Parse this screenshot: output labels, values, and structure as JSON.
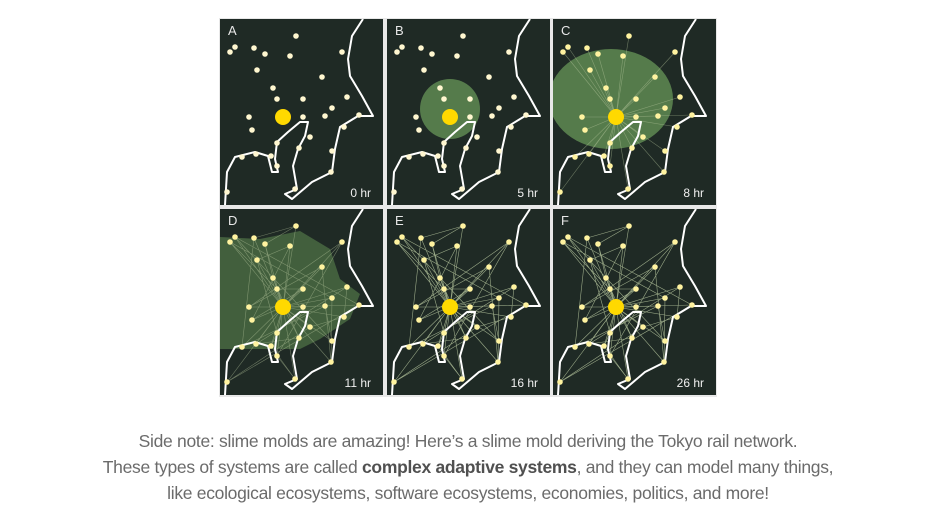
{
  "figure": {
    "panels": [
      {
        "letter": "A",
        "time": "0 hr"
      },
      {
        "letter": "B",
        "time": "5 hr"
      },
      {
        "letter": "C",
        "time": "8 hr"
      },
      {
        "letter": "D",
        "time": "11 hr"
      },
      {
        "letter": "E",
        "time": "16 hr"
      },
      {
        "letter": "F",
        "time": "26 hr"
      }
    ],
    "colors": {
      "background": "#1f2a25",
      "coast": "#ffffff",
      "food": "#fff7d0",
      "mold": "#ffd900",
      "plasmodium": "#5f8a52"
    }
  },
  "caption": {
    "line1": "Side note: slime molds are amazing! Here’s a slime mold deriving the Tokyo rail network.",
    "line2_pre": "These types of systems are called ",
    "line2_bold": "complex adaptive systems",
    "line2_post": ", and they can model many things,",
    "line3": "like ecological ecosystems, software ecosystems, economies, politics, and more!"
  }
}
